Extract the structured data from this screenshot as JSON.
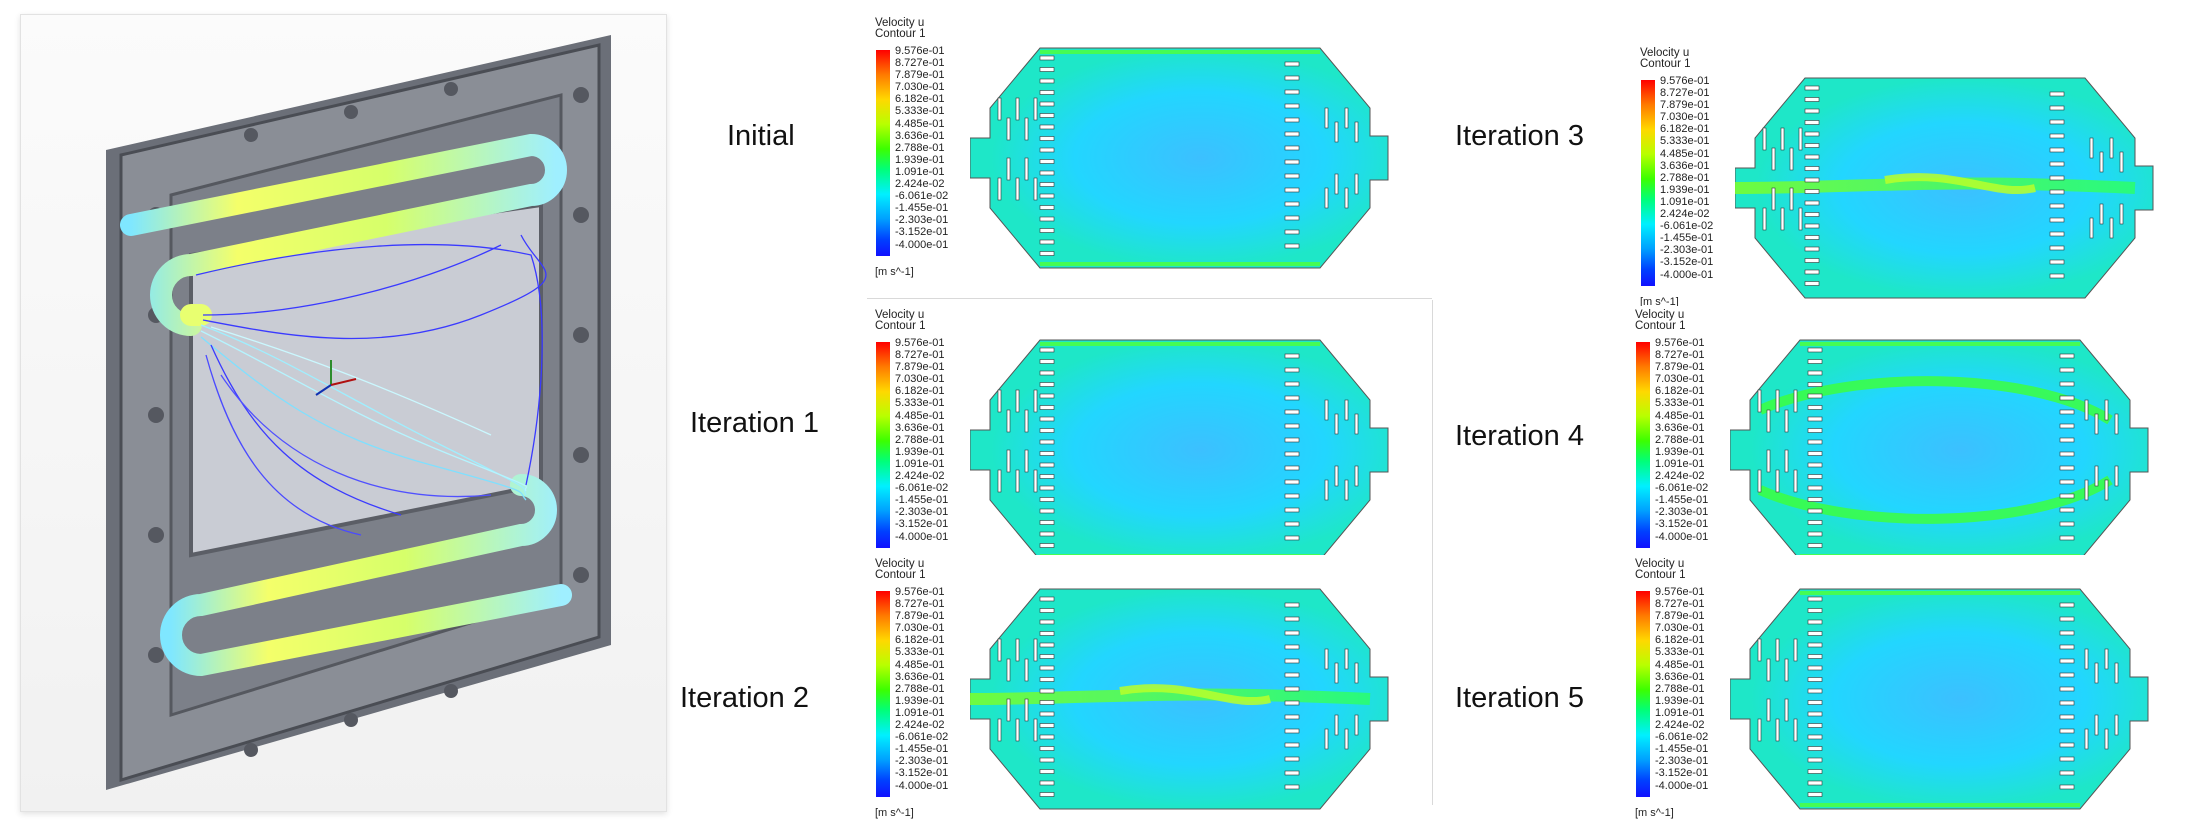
{
  "iteration_labels": [
    "Initial",
    "Iteration 1",
    "Iteration 2",
    "Iteration 3",
    "Iteration 4",
    "Iteration 5"
  ],
  "legend": {
    "variable": "Velocity u",
    "contour": "Contour 1",
    "ticks": [
      "9.576e-01",
      "8.727e-01",
      "7.879e-01",
      "7.030e-01",
      "6.182e-01",
      "5.333e-01",
      "4.485e-01",
      "3.636e-01",
      "2.788e-01",
      "1.939e-01",
      "1.091e-01",
      "2.424e-02",
      "-6.061e-02",
      "-1.455e-01",
      "-2.303e-01",
      "-3.152e-01",
      "-4.000e-01"
    ],
    "units": "[m s^-1]"
  },
  "colors": {
    "high": "#ff0000",
    "mid": "#3cff00",
    "base": "#00d7a0",
    "low": "#1010ff"
  }
}
